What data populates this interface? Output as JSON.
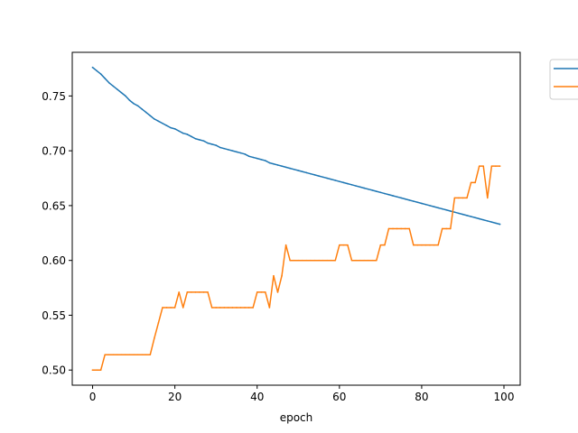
{
  "chart_data": {
    "type": "line",
    "title": "",
    "xlabel": "epoch",
    "ylabel": "",
    "xlim": [
      -4.95,
      103.95
    ],
    "ylim": [
      0.4862,
      0.7898
    ],
    "xticks": [
      0,
      20,
      40,
      60,
      80,
      100
    ],
    "xtick_labels": [
      "0",
      "20",
      "40",
      "60",
      "80",
      "100"
    ],
    "yticks": [
      0.5,
      0.55,
      0.6,
      0.65,
      0.7,
      0.75
    ],
    "ytick_labels": [
      "0.50",
      "0.55",
      "0.60",
      "0.65",
      "0.70",
      "0.75"
    ],
    "grid": false,
    "legend_position": "outside-top-right",
    "legend_entries": [
      "",
      ""
    ],
    "series": [
      {
        "color": "#1f77b4",
        "x": [
          0,
          1,
          2,
          3,
          4,
          5,
          6,
          7,
          8,
          9,
          10,
          11,
          12,
          13,
          14,
          15,
          16,
          17,
          18,
          19,
          20,
          21,
          22,
          23,
          24,
          25,
          26,
          27,
          28,
          29,
          30,
          31,
          32,
          33,
          34,
          35,
          36,
          37,
          38,
          39,
          40,
          41,
          42,
          43,
          44,
          45,
          46,
          47,
          48,
          49,
          50,
          51,
          52,
          53,
          54,
          55,
          56,
          57,
          58,
          59,
          60,
          61,
          62,
          63,
          64,
          65,
          66,
          67,
          68,
          69,
          70,
          71,
          72,
          73,
          74,
          75,
          76,
          77,
          78,
          79,
          80,
          81,
          82,
          83,
          84,
          85,
          86,
          87,
          88,
          89,
          90,
          91,
          92,
          93,
          94,
          95,
          96,
          97,
          98,
          99
        ],
        "y": [
          0.776,
          0.773,
          0.77,
          0.766,
          0.762,
          0.759,
          0.756,
          0.753,
          0.75,
          0.746,
          0.743,
          0.741,
          0.738,
          0.735,
          0.732,
          0.729,
          0.727,
          0.725,
          0.723,
          0.721,
          0.72,
          0.718,
          0.716,
          0.715,
          0.713,
          0.711,
          0.71,
          0.709,
          0.707,
          0.706,
          0.705,
          0.703,
          0.702,
          0.701,
          0.7,
          0.699,
          0.698,
          0.697,
          0.695,
          0.694,
          0.693,
          0.692,
          0.691,
          0.689,
          0.688,
          0.687,
          0.686,
          0.685,
          0.684,
          0.683,
          0.682,
          0.681,
          0.68,
          0.679,
          0.678,
          0.677,
          0.676,
          0.675,
          0.674,
          0.673,
          0.672,
          0.671,
          0.67,
          0.669,
          0.668,
          0.667,
          0.666,
          0.665,
          0.664,
          0.663,
          0.662,
          0.661,
          0.66,
          0.659,
          0.658,
          0.657,
          0.656,
          0.655,
          0.654,
          0.653,
          0.652,
          0.651,
          0.65,
          0.649,
          0.648,
          0.647,
          0.646,
          0.645,
          0.644,
          0.643,
          0.642,
          0.641,
          0.64,
          0.639,
          0.638,
          0.637,
          0.636,
          0.635,
          0.634,
          0.633
        ]
      },
      {
        "color": "#ff7f0e",
        "x": [
          0,
          1,
          2,
          3,
          4,
          5,
          6,
          7,
          8,
          9,
          10,
          11,
          12,
          13,
          14,
          15,
          16,
          17,
          18,
          19,
          20,
          21,
          22,
          23,
          24,
          25,
          26,
          27,
          28,
          29,
          30,
          31,
          32,
          33,
          34,
          35,
          36,
          37,
          38,
          39,
          40,
          41,
          42,
          43,
          44,
          45,
          46,
          47,
          48,
          49,
          50,
          51,
          52,
          53,
          54,
          55,
          56,
          57,
          58,
          59,
          60,
          61,
          62,
          63,
          64,
          65,
          66,
          67,
          68,
          69,
          70,
          71,
          72,
          73,
          74,
          75,
          76,
          77,
          78,
          79,
          80,
          81,
          82,
          83,
          84,
          85,
          86,
          87,
          88,
          89,
          90,
          91,
          92,
          93,
          94,
          95,
          96,
          97,
          98,
          99
        ],
        "y": [
          0.5,
          0.5,
          0.5,
          0.514,
          0.514,
          0.514,
          0.514,
          0.514,
          0.514,
          0.514,
          0.514,
          0.514,
          0.514,
          0.514,
          0.514,
          0.529,
          0.543,
          0.557,
          0.557,
          0.557,
          0.557,
          0.571,
          0.557,
          0.571,
          0.571,
          0.571,
          0.571,
          0.571,
          0.571,
          0.557,
          0.557,
          0.557,
          0.557,
          0.557,
          0.557,
          0.557,
          0.557,
          0.557,
          0.557,
          0.557,
          0.571,
          0.571,
          0.571,
          0.557,
          0.586,
          0.571,
          0.586,
          0.614,
          0.6,
          0.6,
          0.6,
          0.6,
          0.6,
          0.6,
          0.6,
          0.6,
          0.6,
          0.6,
          0.6,
          0.6,
          0.614,
          0.614,
          0.614,
          0.6,
          0.6,
          0.6,
          0.6,
          0.6,
          0.6,
          0.6,
          0.614,
          0.614,
          0.629,
          0.629,
          0.629,
          0.629,
          0.629,
          0.629,
          0.614,
          0.614,
          0.614,
          0.614,
          0.614,
          0.614,
          0.614,
          0.629,
          0.629,
          0.629,
          0.657,
          0.657,
          0.657,
          0.657,
          0.671,
          0.671,
          0.686,
          0.686,
          0.657,
          0.686,
          0.686,
          0.686
        ]
      }
    ]
  }
}
